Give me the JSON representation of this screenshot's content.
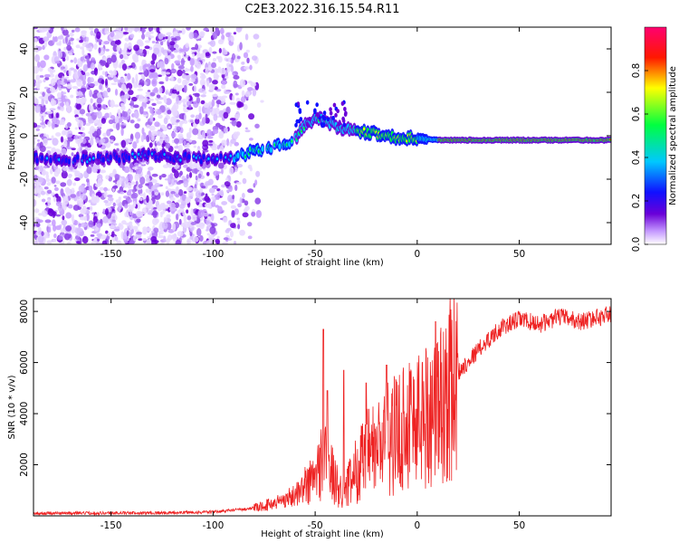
{
  "title": "C2E3.2022.316.15.54.R11",
  "colors": {
    "snr_line": "#ee2222",
    "axis": "#000000",
    "background": "#ffffff"
  },
  "chart_data": [
    {
      "type": "heatmap",
      "xlabel": "Height of straight line (km)",
      "ylabel": "Frequency (Hz)",
      "xlim": [
        -188,
        95
      ],
      "ylim": [
        -50,
        50
      ],
      "x_ticks": [
        -150,
        -100,
        -50,
        0,
        50
      ],
      "y_ticks": [
        -40,
        -20,
        0,
        20,
        40
      ],
      "colorbar": {
        "label": "Normalized spectral amplitude",
        "range": [
          0,
          1
        ],
        "ticks": [
          "0.0",
          "0.2",
          "0.4",
          "0.6",
          "0.8"
        ],
        "colormap": [
          "#ffffff",
          "#6a00d8",
          "#1010ff",
          "#00c8ff",
          "#00ff40",
          "#ffff00",
          "#ff1800",
          "#ff00a0"
        ]
      },
      "ridge": [
        {
          "x": -188,
          "y": -10
        },
        {
          "x": -160,
          "y": -11
        },
        {
          "x": -150,
          "y": -10
        },
        {
          "x": -130,
          "y": -9
        },
        {
          "x": -100,
          "y": -11
        },
        {
          "x": -90,
          "y": -10
        },
        {
          "x": -80,
          "y": -7
        },
        {
          "x": -70,
          "y": -5
        },
        {
          "x": -60,
          "y": -2
        },
        {
          "x": -55,
          "y": 5
        },
        {
          "x": -50,
          "y": 8
        },
        {
          "x": -45,
          "y": 7
        },
        {
          "x": -40,
          "y": 4
        },
        {
          "x": -30,
          "y": 2
        },
        {
          "x": -20,
          "y": 1
        },
        {
          "x": -10,
          "y": -1
        },
        {
          "x": 0,
          "y": -1
        },
        {
          "x": 10,
          "y": -2
        },
        {
          "x": 30,
          "y": -2
        },
        {
          "x": 60,
          "y": -2
        },
        {
          "x": 95,
          "y": -2
        }
      ]
    },
    {
      "type": "line",
      "xlabel": "Height of straight line (km)",
      "ylabel": "SNR (10 * v/v)",
      "xlim": [
        -188,
        95
      ],
      "ylim": [
        0,
        8500
      ],
      "x_ticks": [
        -150,
        -100,
        -50,
        0,
        50
      ],
      "y_ticks": [
        2000,
        4000,
        6000,
        8000
      ],
      "envelope": [
        {
          "x": -188,
          "y": 100
        },
        {
          "x": -120,
          "y": 120
        },
        {
          "x": -100,
          "y": 150
        },
        {
          "x": -80,
          "y": 300
        },
        {
          "x": -70,
          "y": 500
        },
        {
          "x": -60,
          "y": 800
        },
        {
          "x": -50,
          "y": 1500
        },
        {
          "x": -45,
          "y": 2500
        },
        {
          "x": -40,
          "y": 1200
        },
        {
          "x": -35,
          "y": 1000
        },
        {
          "x": -30,
          "y": 1800
        },
        {
          "x": -25,
          "y": 2400
        },
        {
          "x": -20,
          "y": 2600
        },
        {
          "x": -15,
          "y": 3000
        },
        {
          "x": -10,
          "y": 3200
        },
        {
          "x": -5,
          "y": 3800
        },
        {
          "x": 0,
          "y": 3800
        },
        {
          "x": 5,
          "y": 4000
        },
        {
          "x": 10,
          "y": 4200
        },
        {
          "x": 15,
          "y": 4800
        },
        {
          "x": 20,
          "y": 5600
        },
        {
          "x": 30,
          "y": 6500
        },
        {
          "x": 40,
          "y": 7300
        },
        {
          "x": 50,
          "y": 7700
        },
        {
          "x": 60,
          "y": 7500
        },
        {
          "x": 70,
          "y": 7800
        },
        {
          "x": 80,
          "y": 7600
        },
        {
          "x": 95,
          "y": 7900
        }
      ],
      "spikes": [
        {
          "x": -46,
          "y": 7300
        },
        {
          "x": -44,
          "y": 4900
        },
        {
          "x": -36,
          "y": 5700
        },
        {
          "x": -25,
          "y": 5200
        },
        {
          "x": -15,
          "y": 5900
        },
        {
          "x": 9,
          "y": 7600
        }
      ]
    }
  ]
}
